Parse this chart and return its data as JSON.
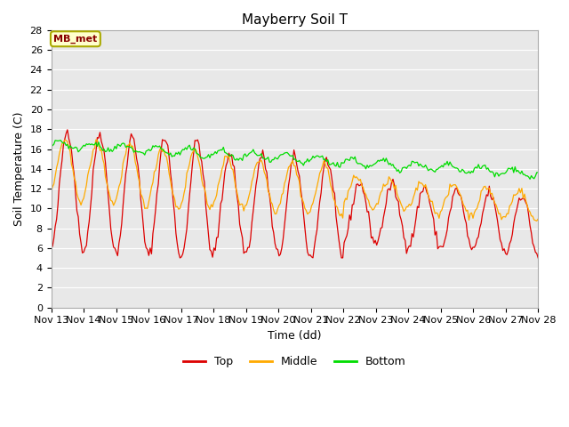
{
  "title": "Mayberry Soil T",
  "xlabel": "Time (dd)",
  "ylabel": "Soil Temperature (C)",
  "ylim": [
    0,
    28
  ],
  "yticks": [
    0,
    2,
    4,
    6,
    8,
    10,
    12,
    14,
    16,
    18,
    20,
    22,
    24,
    26,
    28
  ],
  "xtick_labels": [
    "Nov 13",
    "Nov 14",
    "Nov 15",
    "Nov 16",
    "Nov 17",
    "Nov 18",
    "Nov 19",
    "Nov 20",
    "Nov 21",
    "Nov 22",
    "Nov 23",
    "Nov 24",
    "Nov 25",
    "Nov 26",
    "Nov 27",
    "Nov 28"
  ],
  "annotation_text": "MB_met",
  "annotation_bg": "#ffffcc",
  "annotation_border": "#aaaa00",
  "top_color": "#dd0000",
  "middle_color": "#ffaa00",
  "bottom_color": "#00dd00",
  "fig_bg": "#ffffff",
  "plot_bg": "#e8e8e8",
  "grid_color": "#ffffff"
}
